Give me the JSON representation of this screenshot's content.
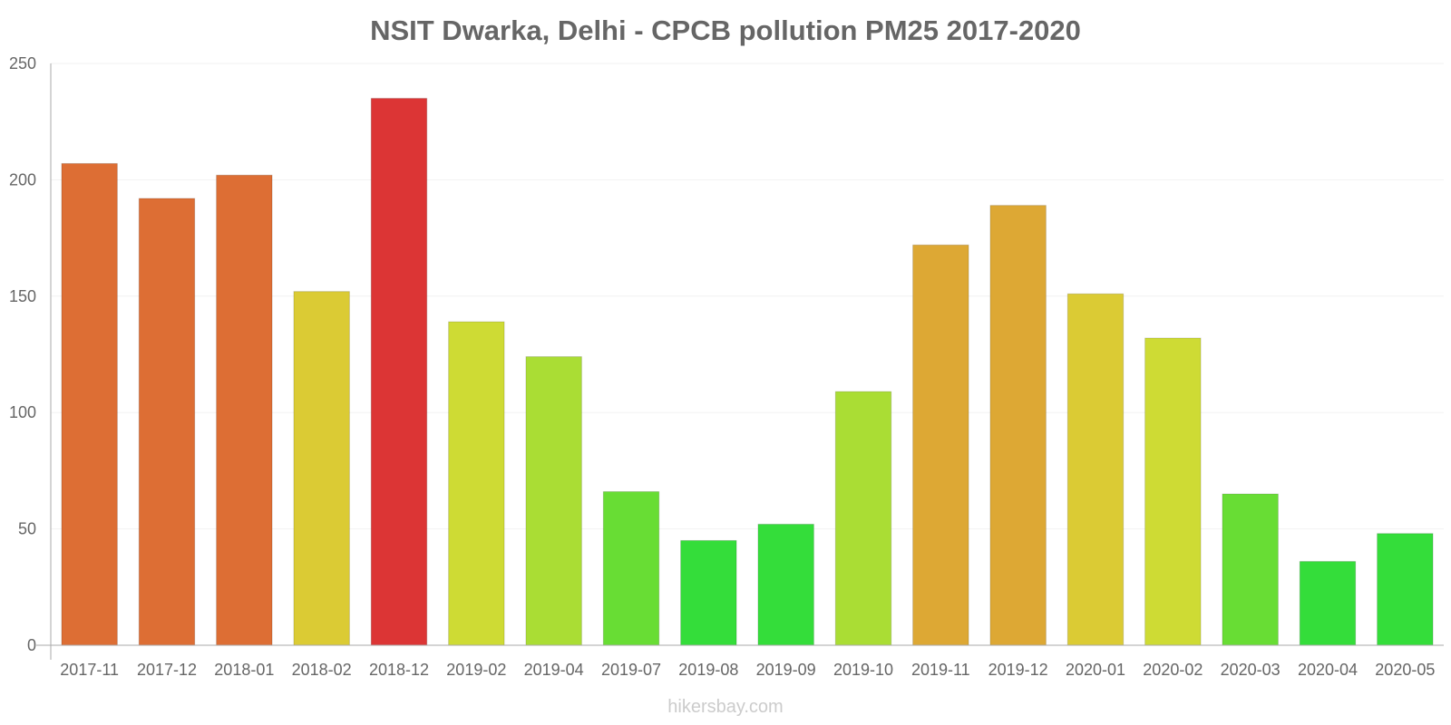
{
  "chart_data": {
    "type": "bar",
    "title": "NSIT Dwarka, Delhi - CPCB pollution PM25 2017-2020",
    "xlabel": "",
    "ylabel": "",
    "ylim": [
      0,
      250
    ],
    "yticks": [
      0,
      50,
      100,
      150,
      200,
      250
    ],
    "categories": [
      "2017-11",
      "2017-12",
      "2018-01",
      "2018-02",
      "2018-12",
      "2019-02",
      "2019-04",
      "2019-07",
      "2019-08",
      "2019-09",
      "2019-10",
      "2019-11",
      "2019-12",
      "2020-01",
      "2020-02",
      "2020-03",
      "2020-04",
      "2020-05"
    ],
    "values": [
      207,
      192,
      202,
      152,
      235,
      139,
      124,
      66,
      45,
      52,
      109,
      172,
      189,
      151,
      132,
      65,
      36,
      48
    ],
    "colors": [
      "#dd6e34",
      "#dd6e34",
      "#dd6e34",
      "#dbcb34",
      "#dc3535",
      "#cedb34",
      "#aadd34",
      "#68dd34",
      "#34dd3a",
      "#34dd3a",
      "#aadd34",
      "#dda834",
      "#dda834",
      "#dbcb34",
      "#cedb34",
      "#68dd34",
      "#34dd3a",
      "#34dd3a"
    ],
    "gridlines": true
  },
  "watermark": "hikersbay.com"
}
